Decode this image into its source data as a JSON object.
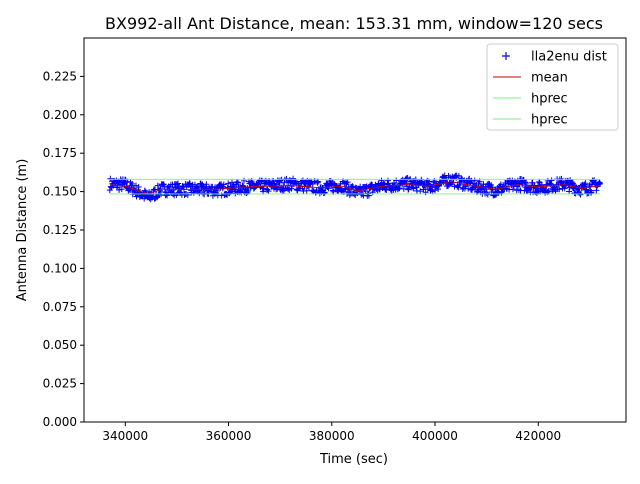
{
  "chart_data": {
    "type": "scatter",
    "title": "BX992-all Ant Distance, mean: 153.31 mm, window=120 secs",
    "xlabel": "Time (sec)",
    "ylabel": "Antenna Distance (m)",
    "xlim": [
      332000,
      437000
    ],
    "ylim": [
      0.0,
      0.25
    ],
    "xticks": [
      340000,
      360000,
      380000,
      400000,
      420000
    ],
    "xtick_labels": [
      "340000",
      "360000",
      "380000",
      "400000",
      "420000"
    ],
    "yticks": [
      0.0,
      0.025,
      0.05,
      0.075,
      0.1,
      0.125,
      0.15,
      0.175,
      0.2,
      0.225
    ],
    "ytick_labels": [
      "0.000",
      "0.025",
      "0.050",
      "0.075",
      "0.100",
      "0.125",
      "0.150",
      "0.175",
      "0.200",
      "0.225"
    ],
    "grid": false,
    "legend_position": "top-right",
    "series": [
      {
        "name": "lla2enu dist",
        "kind": "markers",
        "marker": "+",
        "color": "#0000ff",
        "x_range": [
          337000,
          432000
        ],
        "trend_x": [
          337000,
          340000,
          344500,
          347000,
          352000,
          358000,
          363000,
          368000,
          372000,
          378000,
          382000,
          385000,
          390000,
          395000,
          399000,
          403000,
          408000,
          412000,
          416000,
          420000,
          425000,
          428500,
          432000
        ],
        "trend_y": [
          0.155,
          0.1545,
          0.146,
          0.1515,
          0.1515,
          0.151,
          0.153,
          0.1535,
          0.155,
          0.1525,
          0.154,
          0.149,
          0.154,
          0.155,
          0.153,
          0.158,
          0.153,
          0.151,
          0.155,
          0.1525,
          0.155,
          0.1515,
          0.155
        ],
        "spread": 0.004
      },
      {
        "name": "mean",
        "kind": "line",
        "color": "#cc0000",
        "x": [
          337000,
          340000,
          344500,
          347000,
          352000,
          358000,
          363000,
          368000,
          372000,
          378000,
          382000,
          385000,
          390000,
          395000,
          399000,
          403000,
          408000,
          412000,
          416000,
          420000,
          425000,
          428500,
          432000
        ],
        "y": [
          0.1545,
          0.1535,
          0.1485,
          0.1515,
          0.1515,
          0.1515,
          0.153,
          0.1535,
          0.154,
          0.1525,
          0.1535,
          0.1505,
          0.1535,
          0.1545,
          0.1535,
          0.1565,
          0.1535,
          0.1515,
          0.1545,
          0.153,
          0.1545,
          0.152,
          0.154
        ]
      },
      {
        "name": "hprec",
        "kind": "line",
        "color": "#7ef07e",
        "x": [
          337000,
          432000
        ],
        "y": [
          0.158,
          0.158
        ]
      },
      {
        "name": "hprec",
        "kind": "line",
        "color": "#7ef07e",
        "x": [
          337000,
          432000
        ],
        "y": [
          0.1485,
          0.1485
        ]
      }
    ]
  }
}
